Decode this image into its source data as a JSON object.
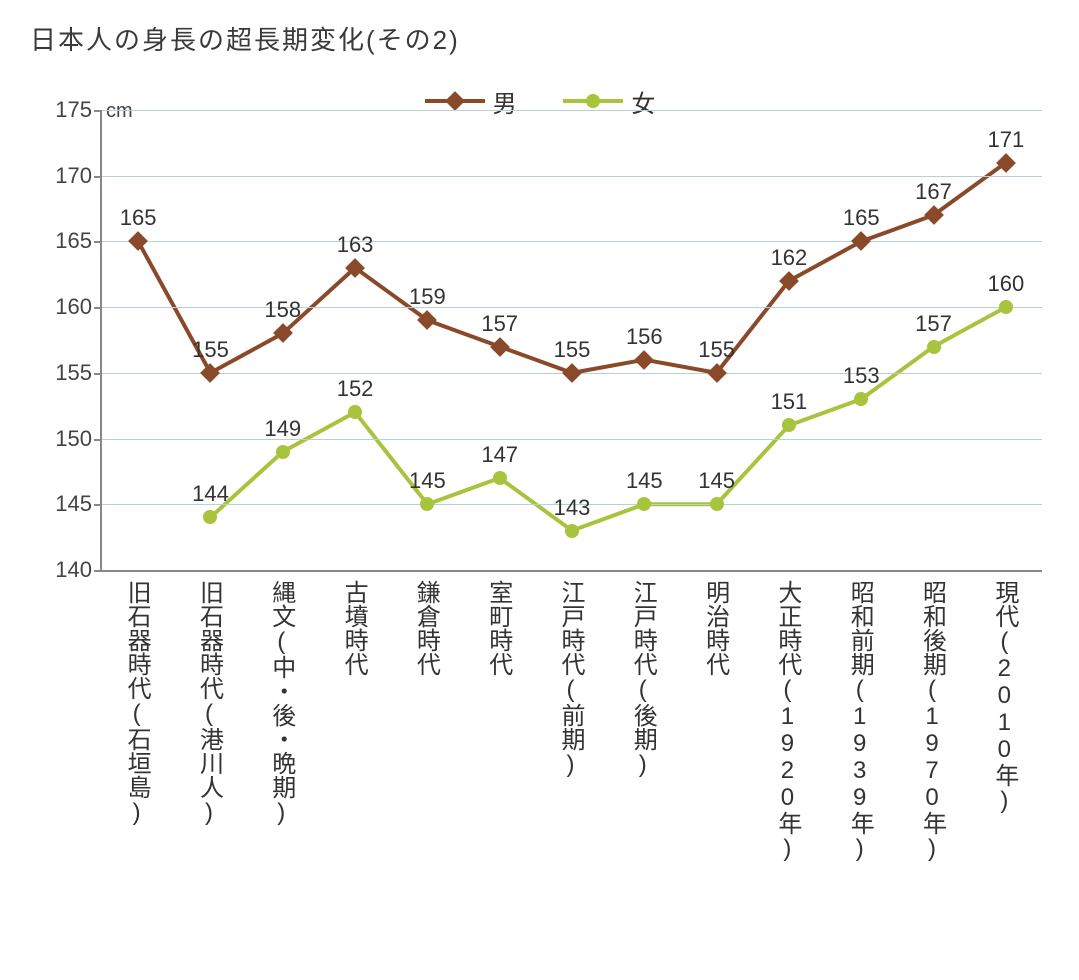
{
  "title": "日本人の身長の超長期変化(その2)",
  "chart": {
    "type": "line",
    "y_unit_label": "cm",
    "background_color": "#ffffff",
    "axis_color": "#888888",
    "grid_color": "#b8cfd6",
    "text_color": "#3a3a3a",
    "title_fontsize": 26,
    "tick_fontsize": 22,
    "datalabel_fontsize": 22,
    "xlabel_fontsize": 24,
    "ylim": [
      140,
      175
    ],
    "ytick_step": 5,
    "yticks": [
      140,
      145,
      150,
      155,
      160,
      165,
      170,
      175
    ],
    "line_width": 4,
    "marker_size": 14,
    "categories": [
      "旧石器時代(石垣島)",
      "旧石器時代(港川人)",
      "縄文(中・後・晩期)",
      "古墳時代",
      "鎌倉時代",
      "室町時代",
      "江戸時代(前期)",
      "江戸時代(後期)",
      "明治時代",
      "大正時代(1920年)",
      "昭和前期(1939年)",
      "昭和後期(1970年)",
      "現代(2010年)"
    ],
    "legend": {
      "male": "男",
      "female": "女"
    },
    "series": {
      "male": {
        "name": "男",
        "color": "#8a4a2a",
        "marker": "diamond",
        "values": [
          165,
          155,
          158,
          163,
          159,
          157,
          155,
          156,
          155,
          162,
          165,
          167,
          171
        ]
      },
      "female": {
        "name": "女",
        "color": "#a8c43c",
        "marker": "circle",
        "values": [
          null,
          144,
          149,
          152,
          145,
          147,
          143,
          145,
          145,
          151,
          153,
          157,
          160
        ]
      }
    }
  }
}
